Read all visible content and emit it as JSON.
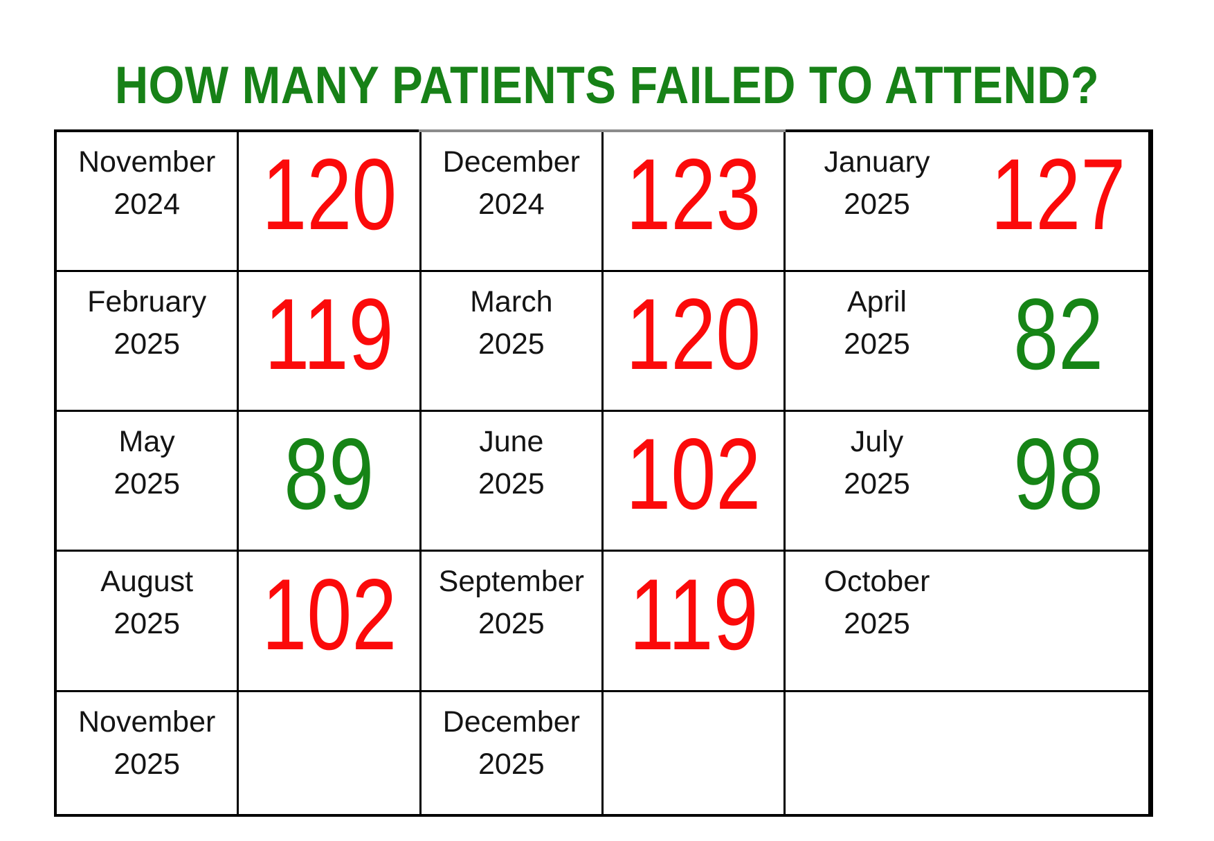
{
  "title": {
    "text": "HOW MANY PATIENTS FAILED TO ATTEND?"
  },
  "colors": {
    "title_green": "#178117",
    "value_red": "#fb0a0a",
    "value_green": "#168416",
    "month_text": "#141414",
    "border": "#000000",
    "background": "#ffffff"
  },
  "table": {
    "rows": [
      [
        {
          "type": "month",
          "month": "November",
          "year": "2024"
        },
        {
          "type": "value",
          "value": "120",
          "color": "red"
        },
        {
          "type": "month",
          "month": "December",
          "year": "2024"
        },
        {
          "type": "value",
          "value": "123",
          "color": "red"
        },
        {
          "type": "month",
          "month": "January",
          "year": "2025"
        },
        {
          "type": "value",
          "value": "127",
          "color": "red"
        }
      ],
      [
        {
          "type": "month",
          "month": "February",
          "year": "2025"
        },
        {
          "type": "value",
          "value": "119",
          "color": "red"
        },
        {
          "type": "month",
          "month": "March",
          "year": "2025"
        },
        {
          "type": "value",
          "value": "120",
          "color": "red"
        },
        {
          "type": "month",
          "month": "April",
          "year": "2025"
        },
        {
          "type": "value",
          "value": "82",
          "color": "green"
        }
      ],
      [
        {
          "type": "month",
          "month": "May",
          "year": "2025"
        },
        {
          "type": "value",
          "value": "89",
          "color": "green"
        },
        {
          "type": "month",
          "month": "June",
          "year": "2025"
        },
        {
          "type": "value",
          "value": "102",
          "color": "red"
        },
        {
          "type": "month",
          "month": "July",
          "year": "2025"
        },
        {
          "type": "value",
          "value": "98",
          "color": "green"
        }
      ],
      [
        {
          "type": "month",
          "month": "August",
          "year": "2025"
        },
        {
          "type": "value",
          "value": "102",
          "color": "red"
        },
        {
          "type": "month",
          "month": "September",
          "year": "2025"
        },
        {
          "type": "value",
          "value": "119",
          "color": "red"
        },
        {
          "type": "month",
          "month": "October",
          "year": "2025"
        },
        {
          "type": "empty"
        }
      ],
      [
        {
          "type": "month",
          "month": "November",
          "year": "2025"
        },
        {
          "type": "empty"
        },
        {
          "type": "month",
          "month": "December",
          "year": "2025"
        },
        {
          "type": "empty"
        },
        {
          "type": "empty"
        },
        {
          "type": "empty"
        }
      ]
    ]
  },
  "chart_data": {
    "type": "table",
    "title": "HOW MANY PATIENTS FAILED TO ATTEND?",
    "categories": [
      "November 2024",
      "December 2024",
      "January 2025",
      "February 2025",
      "March 2025",
      "April 2025",
      "May 2025",
      "June 2025",
      "July 2025",
      "August 2025",
      "September 2025",
      "October 2025",
      "November 2025",
      "December 2025"
    ],
    "values": [
      120,
      123,
      127,
      119,
      120,
      82,
      89,
      102,
      98,
      102,
      119,
      null,
      null,
      null
    ],
    "value_colors": [
      "red",
      "red",
      "red",
      "red",
      "red",
      "green",
      "green",
      "red",
      "green",
      "red",
      "red",
      null,
      null,
      null
    ],
    "layout": "grid of month/value cell pairs, 3 pairs per row, 5 rows"
  }
}
